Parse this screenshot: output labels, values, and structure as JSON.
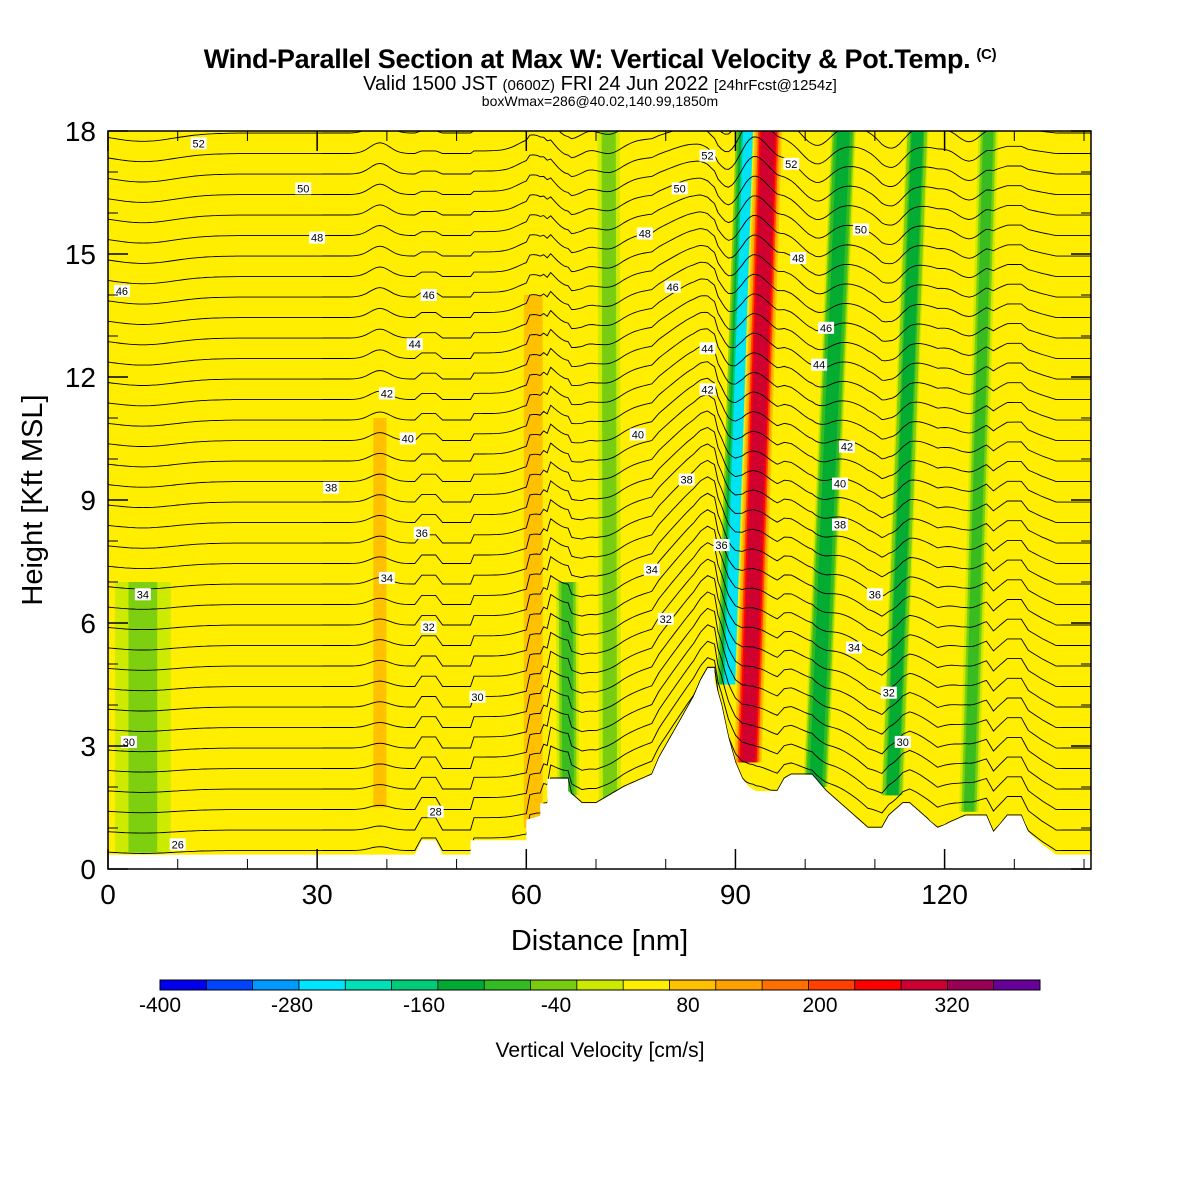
{
  "header": {
    "title": "Wind-Parallel Section at Max W: Vertical Velocity & Pot.Temp.",
    "copyright": "(C)",
    "valid_main": "Valid 1500 JST",
    "valid_utc": "(0600Z)",
    "valid_date": "FRI 24 Jun 2022",
    "forecast": "[24hrFcst@1254z]",
    "boxmax": "boxWmax=286@40.02,140.99,1850m"
  },
  "chart_data": {
    "type": "heatmap",
    "xlabel": "Distance [nm]",
    "ylabel": "Height [Kft MSL]",
    "xlim": [
      0,
      141
    ],
    "ylim": [
      0,
      18
    ],
    "x_ticks": [
      "0",
      "30",
      "60",
      "90",
      "120"
    ],
    "y_ticks": [
      "0",
      "3",
      "6",
      "9",
      "12",
      "15",
      "18"
    ],
    "colorbar": {
      "label": "Vertical Velocity [cm/s]",
      "tick_labels": [
        "-400",
        "-280",
        "-160",
        "-40",
        "80",
        "200",
        "320"
      ],
      "tick_values": [
        -400,
        -280,
        -160,
        -40,
        80,
        200,
        320
      ],
      "bounds": [
        -400,
        400
      ],
      "step": 40,
      "colors": [
        "#0000ee",
        "#0044ff",
        "#0099ff",
        "#00e5ff",
        "#00e0b8",
        "#00cc77",
        "#00aa33",
        "#33bb22",
        "#77cc11",
        "#ccea00",
        "#ffee00",
        "#ffc000",
        "#ffa000",
        "#ff7000",
        "#ff4000",
        "#ff0000",
        "#cc0033",
        "#990055",
        "#660099"
      ]
    },
    "terrain_kft": [
      [
        0,
        0.35
      ],
      [
        44,
        0.35
      ],
      [
        45,
        0.7
      ],
      [
        47,
        0.7
      ],
      [
        48,
        0.35
      ],
      [
        52,
        0.35
      ],
      [
        52,
        0.7
      ],
      [
        58,
        0.7
      ],
      [
        60,
        0.7
      ],
      [
        60,
        1.2
      ],
      [
        62,
        1.3
      ],
      [
        62,
        1.6
      ],
      [
        63,
        1.6
      ],
      [
        63,
        2.2
      ],
      [
        66,
        2.2
      ],
      [
        66,
        1.9
      ],
      [
        68,
        1.6
      ],
      [
        70,
        1.6
      ],
      [
        74,
        2.0
      ],
      [
        78,
        2.3
      ],
      [
        79,
        2.7
      ],
      [
        80,
        3.0
      ],
      [
        81,
        3.3
      ],
      [
        82,
        3.6
      ],
      [
        83,
        3.9
      ],
      [
        84,
        4.2
      ],
      [
        85,
        4.6
      ],
      [
        86,
        4.9
      ],
      [
        87,
        4.9
      ],
      [
        87,
        4.6
      ],
      [
        88,
        4.0
      ],
      [
        89,
        3.2
      ],
      [
        90,
        2.6
      ],
      [
        91,
        2.2
      ],
      [
        92,
        2.0
      ],
      [
        93,
        1.9
      ],
      [
        94,
        1.9
      ],
      [
        96,
        1.9
      ],
      [
        97,
        2.2
      ],
      [
        98,
        2.3
      ],
      [
        101,
        2.3
      ],
      [
        103,
        1.9
      ],
      [
        105,
        1.6
      ],
      [
        107,
        1.3
      ],
      [
        109,
        1.0
      ],
      [
        111,
        1.0
      ],
      [
        112,
        1.3
      ],
      [
        114,
        1.6
      ],
      [
        115,
        1.6
      ],
      [
        117,
        1.3
      ],
      [
        119,
        1.0
      ],
      [
        123,
        1.3
      ],
      [
        126,
        1.3
      ],
      [
        127,
        0.9
      ],
      [
        129,
        1.3
      ],
      [
        131,
        1.3
      ],
      [
        132,
        0.9
      ],
      [
        134,
        0.6
      ],
      [
        136,
        0.35
      ],
      [
        141,
        0.35
      ]
    ],
    "w_field": [
      {
        "x": 89.5,
        "ytop": 18,
        "ybot": 4.5,
        "tilt": -3.6,
        "w": -300,
        "width": 2.4
      },
      {
        "x": 91.8,
        "ytop": 18,
        "ybot": 2.6,
        "tilt": -3.4,
        "w": 330,
        "width": 2.2
      },
      {
        "x": 101.5,
        "ytop": 18,
        "ybot": 2.0,
        "tilt": -4.5,
        "w": -180,
        "width": 2.0
      },
      {
        "x": 112.5,
        "ytop": 18,
        "ybot": 1.8,
        "tilt": -4.0,
        "w": -160,
        "width": 1.8
      },
      {
        "x": 123.5,
        "ytop": 18,
        "ybot": 1.4,
        "tilt": -3.0,
        "w": -110,
        "width": 1.6
      },
      {
        "x": 66,
        "ytop": 7,
        "ybot": 1.8,
        "tilt": 0.5,
        "w": -120,
        "width": 1.8
      },
      {
        "x": 72,
        "ytop": 18,
        "ybot": 1.6,
        "tilt": 0.2,
        "w": -80,
        "width": 1.8
      },
      {
        "x": 61,
        "ytop": 14,
        "ybot": 1.0,
        "tilt": 0,
        "w": 90,
        "width": 2.0
      },
      {
        "x": 39,
        "ytop": 11,
        "ybot": 1.5,
        "tilt": 0,
        "w": 80,
        "width": 1.4
      },
      {
        "x": 5,
        "ytop": 7,
        "ybot": 0.4,
        "tilt": 0,
        "w": -60,
        "width": 4.5
      }
    ],
    "isentropes_label_set": [
      "26",
      "28",
      "30",
      "32",
      "34",
      "36",
      "38",
      "40",
      "42",
      "44",
      "46",
      "48",
      "50",
      "52"
    ],
    "contour_labels": [
      {
        "x": 13,
        "y": 17.7,
        "t": "52"
      },
      {
        "x": 28,
        "y": 16.6,
        "t": "50"
      },
      {
        "x": 30,
        "y": 15.4,
        "t": "48"
      },
      {
        "x": 2,
        "y": 14.1,
        "t": "46"
      },
      {
        "x": 46,
        "y": 14.0,
        "t": "46"
      },
      {
        "x": 44,
        "y": 12.8,
        "t": "44"
      },
      {
        "x": 40,
        "y": 11.6,
        "t": "42"
      },
      {
        "x": 43,
        "y": 10.5,
        "t": "40"
      },
      {
        "x": 32,
        "y": 9.3,
        "t": "38"
      },
      {
        "x": 45,
        "y": 8.2,
        "t": "36"
      },
      {
        "x": 40,
        "y": 7.1,
        "t": "34"
      },
      {
        "x": 5,
        "y": 6.7,
        "t": "34"
      },
      {
        "x": 46,
        "y": 5.9,
        "t": "32"
      },
      {
        "x": 53,
        "y": 4.2,
        "t": "30"
      },
      {
        "x": 3,
        "y": 3.1,
        "t": "30"
      },
      {
        "x": 47,
        "y": 1.4,
        "t": "28"
      },
      {
        "x": 10,
        "y": 0.6,
        "t": "26"
      },
      {
        "x": 77,
        "y": 15.5,
        "t": "48"
      },
      {
        "x": 82,
        "y": 16.6,
        "t": "50"
      },
      {
        "x": 81,
        "y": 14.2,
        "t": "46"
      },
      {
        "x": 76,
        "y": 10.6,
        "t": "40"
      },
      {
        "x": 83,
        "y": 9.5,
        "t": "38"
      },
      {
        "x": 78,
        "y": 7.3,
        "t": "34"
      },
      {
        "x": 80,
        "y": 6.1,
        "t": "32"
      },
      {
        "x": 86,
        "y": 17.4,
        "t": "52"
      },
      {
        "x": 86,
        "y": 12.7,
        "t": "44"
      },
      {
        "x": 86,
        "y": 11.7,
        "t": "42"
      },
      {
        "x": 88,
        "y": 7.9,
        "t": "36"
      },
      {
        "x": 98,
        "y": 17.2,
        "t": "52"
      },
      {
        "x": 108,
        "y": 15.6,
        "t": "50"
      },
      {
        "x": 99,
        "y": 14.9,
        "t": "48"
      },
      {
        "x": 103,
        "y": 13.2,
        "t": "46"
      },
      {
        "x": 102,
        "y": 12.3,
        "t": "44"
      },
      {
        "x": 106,
        "y": 10.3,
        "t": "42"
      },
      {
        "x": 105,
        "y": 9.4,
        "t": "40"
      },
      {
        "x": 105,
        "y": 8.4,
        "t": "38"
      },
      {
        "x": 110,
        "y": 6.7,
        "t": "36"
      },
      {
        "x": 107,
        "y": 5.4,
        "t": "34"
      },
      {
        "x": 112,
        "y": 4.3,
        "t": "32"
      },
      {
        "x": 114,
        "y": 3.1,
        "t": "30"
      }
    ]
  }
}
